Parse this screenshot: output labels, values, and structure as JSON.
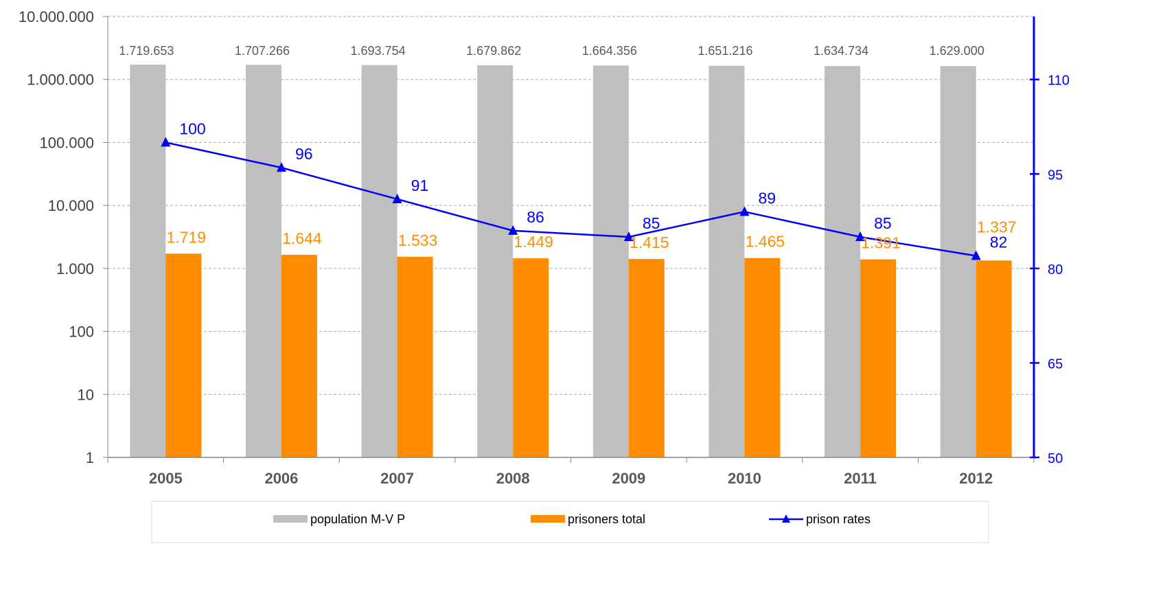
{
  "chart_data": {
    "type": "bar",
    "categories": [
      "2005",
      "2006",
      "2007",
      "2008",
      "2009",
      "2010",
      "2011",
      "2012"
    ],
    "series": [
      {
        "name": "population M-V P",
        "type": "bar",
        "axis": "left",
        "color": "#bfbfbf",
        "values": [
          1719653,
          1707266,
          1693754,
          1679862,
          1664356,
          1651216,
          1634734,
          1629000
        ],
        "labels": [
          "1.719.653",
          "1.707.266",
          "1.693.754",
          "1.679.862",
          "1.664.356",
          "1.651.216",
          "1.634.734",
          "1.629.000"
        ]
      },
      {
        "name": "prisoners total",
        "type": "bar",
        "axis": "left",
        "color": "#ff8c00",
        "values": [
          1719,
          1644,
          1533,
          1449,
          1415,
          1465,
          1391,
          1337
        ],
        "labels": [
          "1.719",
          "1.644",
          "1.533",
          "1.449",
          "1.415",
          "1.465",
          "1.391",
          "1.337"
        ]
      },
      {
        "name": "prison rates",
        "type": "line",
        "axis": "right",
        "color": "#0000ff",
        "marker": "triangle",
        "values": [
          100,
          96,
          91,
          86,
          85,
          89,
          85,
          82
        ],
        "labels": [
          "100",
          "96",
          "91",
          "86",
          "85",
          "89",
          "85",
          "82"
        ]
      }
    ],
    "y_left": {
      "scale": "log",
      "ylim": [
        1,
        10000000
      ],
      "ticks": [
        {
          "value": 1,
          "label": "1"
        },
        {
          "value": 10,
          "label": "10"
        },
        {
          "value": 100,
          "label": "100"
        },
        {
          "value": 1000,
          "label": "1.000"
        },
        {
          "value": 10000,
          "label": "10.000"
        },
        {
          "value": 100000,
          "label": "100.000"
        },
        {
          "value": 1000000,
          "label": "1.000.000"
        },
        {
          "value": 10000000,
          "label": "10.000.000"
        }
      ]
    },
    "y_right": {
      "scale": "linear",
      "ylim": [
        50,
        120
      ],
      "ticks": [
        {
          "value": 50,
          "label": "50"
        },
        {
          "value": 65,
          "label": "65"
        },
        {
          "value": 80,
          "label": "80"
        },
        {
          "value": 95,
          "label": "95"
        },
        {
          "value": 110,
          "label": "110"
        }
      ]
    },
    "grid": true,
    "legend": "bottom"
  }
}
